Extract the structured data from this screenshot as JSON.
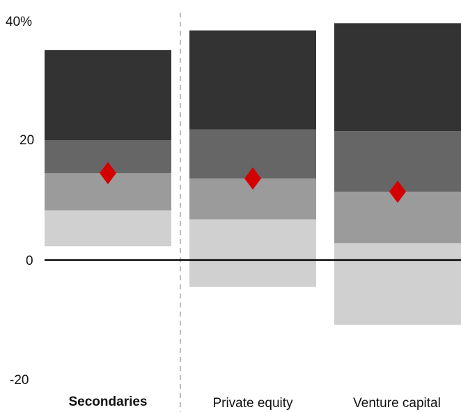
{
  "chart_data": {
    "type": "bar",
    "subtype": "floating-stacked-percentile-range",
    "title": "",
    "xlabel": "",
    "ylabel": "",
    "ylim": [
      -20,
      40
    ],
    "y_ticks": [
      {
        "value": 40,
        "label": "40%"
      },
      {
        "value": 20,
        "label": "20"
      },
      {
        "value": 0,
        "label": "0"
      },
      {
        "value": -20,
        "label": "-20"
      }
    ],
    "categories": [
      "Secondaries",
      "Private equity",
      "Venture capital"
    ],
    "highlighted_category": "Secondaries",
    "band_colors": [
      "#d0d0d0",
      "#9b9b9b",
      "#666666",
      "#333333"
    ],
    "marker_color": "#d40000",
    "zero_line_color": "#000000",
    "divider_color": "#999999",
    "series": [
      {
        "name": "Secondaries",
        "bounds": [
          2.3,
          8.3,
          14.5,
          20.0,
          35.0
        ],
        "marker": 14.5
      },
      {
        "name": "Private equity",
        "bounds": [
          -4.5,
          6.8,
          13.6,
          21.8,
          38.3
        ],
        "marker": 13.6
      },
      {
        "name": "Venture capital",
        "bounds": [
          -10.8,
          2.8,
          11.4,
          21.5,
          39.5
        ],
        "marker": 11.4
      }
    ]
  }
}
